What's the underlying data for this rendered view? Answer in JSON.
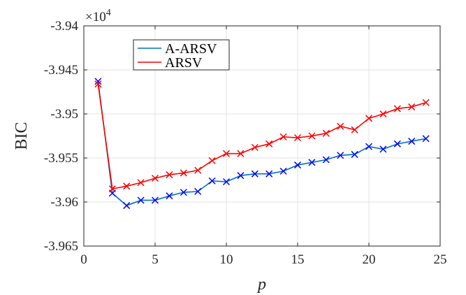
{
  "chart_data": {
    "type": "line",
    "xlabel": "p",
    "ylabel": "BIC",
    "multiplier_text": "×10",
    "multiplier_exp": "4",
    "xlim": [
      0,
      25
    ],
    "ylim": [
      -3.965,
      -3.94
    ],
    "x_ticks": [
      0,
      5,
      10,
      15,
      20,
      25
    ],
    "y_ticks": [
      -3.94,
      -3.945,
      -3.95,
      -3.955,
      -3.96,
      -3.965
    ],
    "x_tick_labels": [
      "0",
      "5",
      "10",
      "15",
      "20",
      "25"
    ],
    "y_tick_labels": [
      "-3.94",
      "-3.945",
      "-3.95",
      "-3.955",
      "-3.96",
      "-3.965"
    ],
    "grid": true,
    "legend_position": "top-left",
    "series": [
      {
        "name": "A-ARSV",
        "color": "#0072BD",
        "marker_color": "#0000FF",
        "x": [
          1,
          2,
          3,
          4,
          5,
          6,
          7,
          8,
          9,
          10,
          11,
          12,
          13,
          14,
          15,
          16,
          17,
          18,
          19,
          20,
          21,
          22,
          23,
          24
        ],
        "values": [
          -3.9463,
          -3.959,
          -3.9604,
          -3.9598,
          -3.9598,
          -3.9593,
          -3.9589,
          -3.9588,
          -3.9576,
          -3.9577,
          -3.957,
          -3.9568,
          -3.9568,
          -3.9565,
          -3.9558,
          -3.9555,
          -3.9552,
          -3.9547,
          -3.9546,
          -3.9537,
          -3.954,
          -3.9534,
          -3.9531,
          -3.9528
        ]
      },
      {
        "name": "ARSV",
        "color": "#FF0000",
        "marker_color": "#FF0000",
        "x": [
          1,
          2,
          3,
          4,
          5,
          6,
          7,
          8,
          9,
          10,
          11,
          12,
          13,
          14,
          15,
          16,
          17,
          18,
          19,
          20,
          21,
          22,
          23,
          24
        ],
        "values": [
          -3.9466,
          -3.9585,
          -3.9582,
          -3.9578,
          -3.9573,
          -3.9569,
          -3.9567,
          -3.9564,
          -3.9553,
          -3.9545,
          -3.9545,
          -3.9538,
          -3.9534,
          -3.9526,
          -3.9527,
          -3.9525,
          -3.9522,
          -3.9514,
          -3.9518,
          -3.9505,
          -3.95,
          -3.9494,
          -3.9492,
          -3.9487
        ]
      }
    ]
  }
}
